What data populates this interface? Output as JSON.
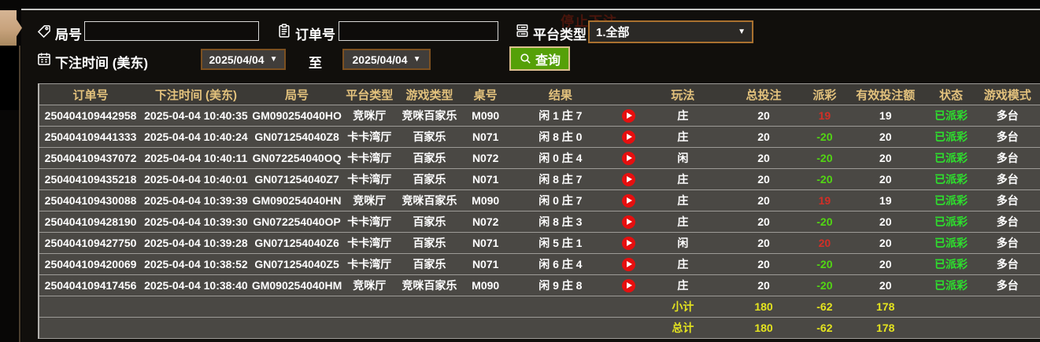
{
  "filters": {
    "round": {
      "label": "局号",
      "value": ""
    },
    "order": {
      "label": "订单号",
      "value": ""
    },
    "platform": {
      "label": "平台类型",
      "selected": "1.全部"
    },
    "bet_time": {
      "label": "下注时间 (美东)",
      "from": "2025/04/04",
      "to_label": "至",
      "to": "2025/04/04"
    },
    "query_button": "查询"
  },
  "background_text": "停止下注",
  "table": {
    "headers": [
      "订单号",
      "下注时间 (美东)",
      "局号",
      "平台类型",
      "游戏类型",
      "桌号",
      "结果",
      "",
      "玩法",
      "总投注",
      "派彩",
      "有效投注额",
      "状态",
      "游戏模式"
    ],
    "rows": [
      {
        "order_no": "250404109442958",
        "bet_time": "2025-04-04 10:40:35",
        "round_no": "GM090254040HO",
        "platform": "竞咪厅",
        "game_type": "竞咪百家乐",
        "table_no": "M090",
        "result": "闲 1 庄 7",
        "play": "庄",
        "total_bet": "20",
        "payout": "19",
        "valid_bet": "19",
        "status": "已派彩",
        "mode": "多台"
      },
      {
        "order_no": "250404109441333",
        "bet_time": "2025-04-04 10:40:24",
        "round_no": "GN071254040Z8",
        "platform": "卡卡湾厅",
        "game_type": "百家乐",
        "table_no": "N071",
        "result": "闲 8 庄 0",
        "play": "庄",
        "total_bet": "20",
        "payout": "-20",
        "valid_bet": "20",
        "status": "已派彩",
        "mode": "多台"
      },
      {
        "order_no": "250404109437072",
        "bet_time": "2025-04-04 10:40:11",
        "round_no": "GN072254040OQ",
        "platform": "卡卡湾厅",
        "game_type": "百家乐",
        "table_no": "N072",
        "result": "闲 0 庄 4",
        "play": "闲",
        "total_bet": "20",
        "payout": "-20",
        "valid_bet": "20",
        "status": "已派彩",
        "mode": "多台"
      },
      {
        "order_no": "250404109435218",
        "bet_time": "2025-04-04 10:40:01",
        "round_no": "GN071254040Z7",
        "platform": "卡卡湾厅",
        "game_type": "百家乐",
        "table_no": "N071",
        "result": "闲 8 庄 7",
        "play": "庄",
        "total_bet": "20",
        "payout": "-20",
        "valid_bet": "20",
        "status": "已派彩",
        "mode": "多台"
      },
      {
        "order_no": "250404109430088",
        "bet_time": "2025-04-04 10:39:39",
        "round_no": "GM090254040HN",
        "platform": "竞咪厅",
        "game_type": "竞咪百家乐",
        "table_no": "M090",
        "result": "闲 0 庄 7",
        "play": "庄",
        "total_bet": "20",
        "payout": "19",
        "valid_bet": "19",
        "status": "已派彩",
        "mode": "多台"
      },
      {
        "order_no": "250404109428190",
        "bet_time": "2025-04-04 10:39:30",
        "round_no": "GN072254040OP",
        "platform": "卡卡湾厅",
        "game_type": "百家乐",
        "table_no": "N072",
        "result": "闲 8 庄 3",
        "play": "庄",
        "total_bet": "20",
        "payout": "-20",
        "valid_bet": "20",
        "status": "已派彩",
        "mode": "多台"
      },
      {
        "order_no": "250404109427750",
        "bet_time": "2025-04-04 10:39:28",
        "round_no": "GN071254040Z6",
        "platform": "卡卡湾厅",
        "game_type": "百家乐",
        "table_no": "N071",
        "result": "闲 5 庄 1",
        "play": "闲",
        "total_bet": "20",
        "payout": "20",
        "valid_bet": "20",
        "status": "已派彩",
        "mode": "多台"
      },
      {
        "order_no": "250404109420069",
        "bet_time": "2025-04-04 10:38:52",
        "round_no": "GN071254040Z5",
        "platform": "卡卡湾厅",
        "game_type": "百家乐",
        "table_no": "N071",
        "result": "闲 6 庄 4",
        "play": "庄",
        "total_bet": "20",
        "payout": "-20",
        "valid_bet": "20",
        "status": "已派彩",
        "mode": "多台"
      },
      {
        "order_no": "250404109417456",
        "bet_time": "2025-04-04 10:38:40",
        "round_no": "GM090254040HM",
        "platform": "竞咪厅",
        "game_type": "竞咪百家乐",
        "table_no": "M090",
        "result": "闲 9 庄 8",
        "play": "庄",
        "total_bet": "20",
        "payout": "-20",
        "valid_bet": "20",
        "status": "已派彩",
        "mode": "多台"
      }
    ],
    "subtotal": {
      "label": "小计",
      "total_bet": "180",
      "payout": "-62",
      "valid_bet": "178"
    },
    "total": {
      "label": "总计",
      "total_bet": "180",
      "payout": "-62",
      "valid_bet": "178"
    }
  },
  "colors": {
    "header_gold": "#e3c27d",
    "payout_win_red": "#d22f27",
    "payout_loss_green": "#52d613",
    "status_paid_green": "#2de02d",
    "summary_yellow": "#e4e41f",
    "query_green": "#55a008",
    "select_border_orange": "#a9712f",
    "tab_beige": "#c7a27c"
  }
}
